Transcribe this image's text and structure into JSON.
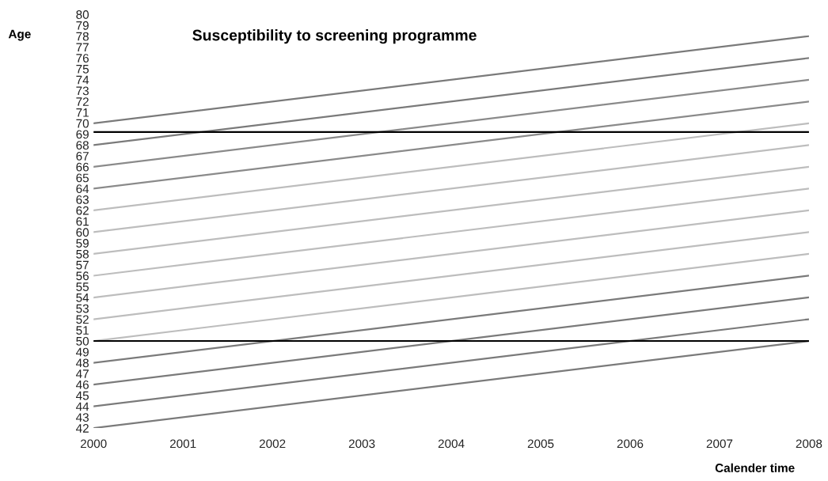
{
  "chart_data": {
    "type": "line",
    "title": "Susceptibility to screening programme",
    "ylabel": "Age",
    "xlabel": "Calender time",
    "x": [
      2000,
      2008
    ],
    "series": [
      {
        "color": "#7a7a7a",
        "values": [
          42,
          50
        ]
      },
      {
        "color": "#7a7a7a",
        "values": [
          44,
          52
        ]
      },
      {
        "color": "#7a7a7a",
        "values": [
          46,
          54
        ]
      },
      {
        "color": "#7a7a7a",
        "values": [
          48,
          56
        ]
      },
      {
        "color": "#bdbdbd",
        "values": [
          50,
          58
        ]
      },
      {
        "color": "#bdbdbd",
        "values": [
          52,
          60
        ]
      },
      {
        "color": "#bdbdbd",
        "values": [
          54,
          62
        ]
      },
      {
        "color": "#bdbdbd",
        "values": [
          56,
          64
        ]
      },
      {
        "color": "#bdbdbd",
        "values": [
          58,
          66
        ]
      },
      {
        "color": "#bdbdbd",
        "values": [
          60,
          68
        ]
      },
      {
        "color": "#bdbdbd",
        "values": [
          62,
          70
        ]
      },
      {
        "color": "#8a8a8a",
        "values": [
          64,
          72
        ]
      },
      {
        "color": "#8a8a8a",
        "values": [
          66,
          74
        ]
      },
      {
        "color": "#7a7a7a",
        "values": [
          68,
          76
        ]
      },
      {
        "color": "#7a7a7a",
        "values": [
          70,
          78
        ]
      }
    ],
    "ref_lines": [
      {
        "axis": "y",
        "value": 69.2,
        "color": "#000000"
      },
      {
        "axis": "y",
        "value": 50,
        "color": "#000000"
      }
    ],
    "xlim": [
      2000,
      2008
    ],
    "xticks": [
      2000,
      2001,
      2002,
      2003,
      2004,
      2005,
      2006,
      2007,
      2008
    ],
    "ylim": [
      42,
      80
    ],
    "yticks": [
      42,
      43,
      44,
      45,
      46,
      47,
      48,
      49,
      50,
      51,
      52,
      53,
      54,
      55,
      56,
      57,
      58,
      59,
      60,
      61,
      62,
      63,
      64,
      65,
      66,
      67,
      68,
      69,
      70,
      71,
      72,
      73,
      74,
      75,
      76,
      77,
      78,
      79,
      80
    ],
    "grid": false,
    "legend": false,
    "marker": "none",
    "line_style": "solid"
  }
}
